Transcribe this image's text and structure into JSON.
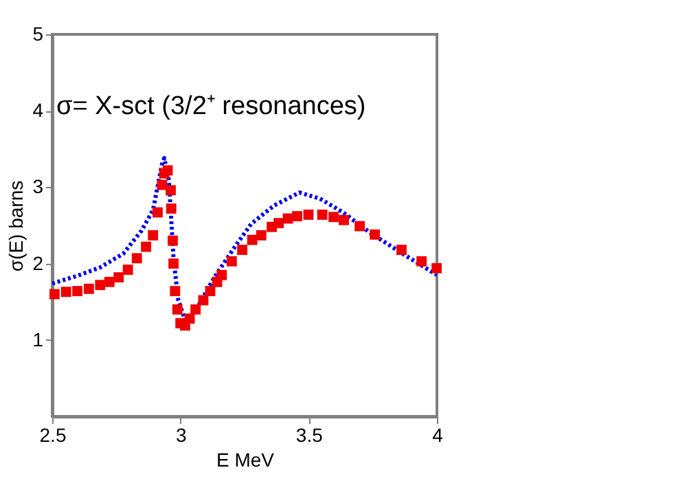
{
  "chart_data": {
    "type": "scatter",
    "xlabel": "E MeV",
    "ylabel": "σ(E) barns",
    "annotations": [
      "σ= X-sct  (3/2⁺ resonances)"
    ],
    "xlim": [
      2.5,
      4
    ],
    "xticks": [
      2.5,
      3,
      3.5,
      4
    ],
    "ylim": [
      0,
      5
    ],
    "yticks": [
      1,
      2,
      3,
      4,
      5
    ],
    "grid": false,
    "series": [
      {
        "type": "line",
        "color": "#0000ee",
        "line_style": "dotted",
        "marker": "none",
        "x": [
          2.5,
          2.598,
          2.687,
          2.777,
          2.848,
          2.893,
          2.928,
          2.937,
          2.955,
          2.973,
          2.991,
          3.018,
          3.063,
          3.134,
          3.206,
          3.276,
          3.365,
          3.464,
          3.544,
          3.634,
          3.741,
          3.866,
          4.0
        ],
        "values": [
          1.74,
          1.84,
          1.95,
          2.13,
          2.43,
          2.7,
          3.3,
          3.38,
          3.09,
          2.07,
          1.53,
          1.26,
          1.41,
          1.83,
          2.19,
          2.52,
          2.76,
          2.93,
          2.85,
          2.67,
          2.4,
          2.13,
          1.85
        ]
      },
      {
        "color": "#ee0000",
        "marker": "square",
        "x": [
          2.509,
          2.554,
          2.598,
          2.643,
          2.687,
          2.723,
          2.759,
          2.795,
          2.83,
          2.866,
          2.893,
          2.911,
          2.928,
          2.937,
          2.95,
          2.962,
          2.964,
          2.97,
          2.973,
          2.979,
          2.988,
          3.0,
          3.018,
          3.036,
          3.059,
          3.089,
          3.116,
          3.143,
          3.161,
          3.2,
          3.241,
          3.28,
          3.315,
          3.356,
          3.383,
          3.419,
          3.455,
          3.499,
          3.553,
          3.597,
          3.637,
          3.699,
          3.758,
          3.862,
          3.94,
          3.999
        ],
        "values": [
          1.6,
          1.63,
          1.64,
          1.67,
          1.72,
          1.76,
          1.82,
          1.92,
          2.07,
          2.22,
          2.37,
          2.67,
          3.03,
          3.18,
          3.22,
          2.96,
          2.72,
          2.3,
          2.0,
          1.64,
          1.4,
          1.22,
          1.19,
          1.28,
          1.4,
          1.52,
          1.64,
          1.76,
          1.85,
          2.03,
          2.18,
          2.31,
          2.37,
          2.48,
          2.53,
          2.59,
          2.62,
          2.64,
          2.64,
          2.61,
          2.57,
          2.49,
          2.38,
          2.18,
          2.03,
          1.94
        ]
      }
    ]
  }
}
